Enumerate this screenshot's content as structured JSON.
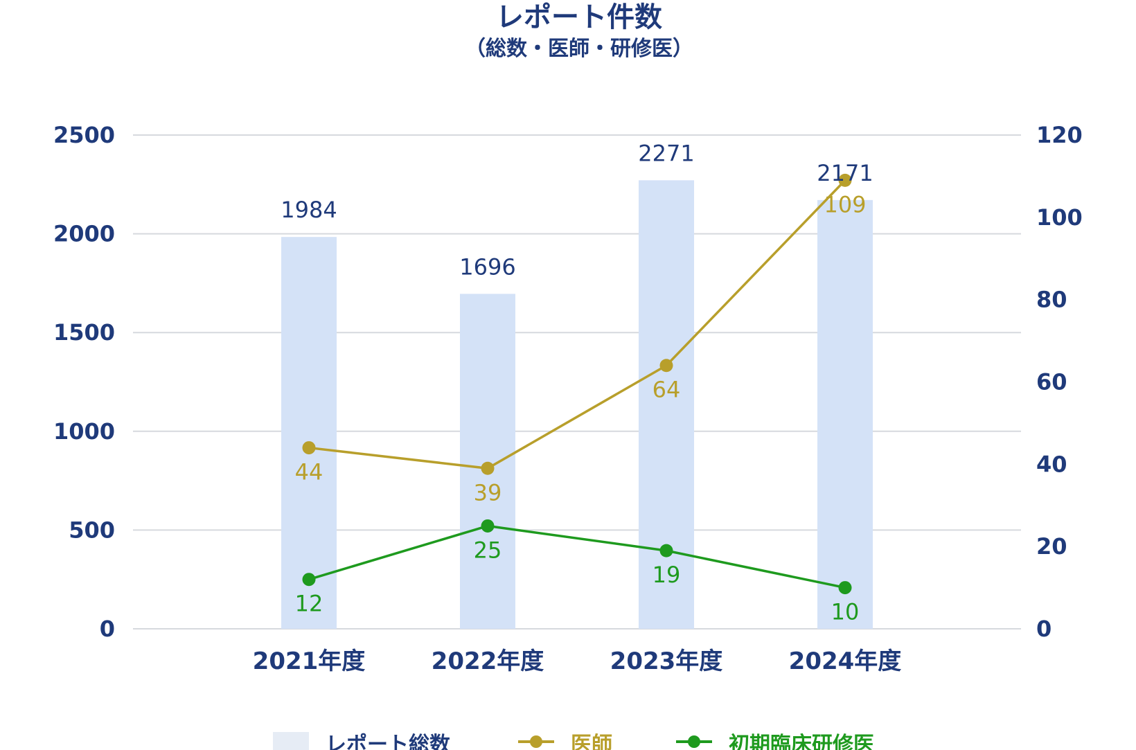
{
  "chart_data": {
    "type": "bar",
    "title": "レポート件数",
    "subtitle": "（総数・医師・研修医）",
    "categories": [
      "2021年度",
      "2022年度",
      "2023年度",
      "2024年度"
    ],
    "y_left": {
      "ticks": [
        0,
        500,
        1000,
        1500,
        2000,
        2500
      ],
      "range": [
        0,
        2500
      ]
    },
    "y_right": {
      "ticks": [
        0,
        20,
        40,
        60,
        80,
        100,
        120
      ],
      "range": [
        0,
        120
      ]
    },
    "grid": true,
    "legend_position": "bottom",
    "series": [
      {
        "name": "レポート総数",
        "type": "bar",
        "axis": "left",
        "color": "#d4e2f7",
        "values": [
          1984,
          1696,
          2271,
          2171
        ]
      },
      {
        "name": "医師",
        "type": "line",
        "axis": "right",
        "color": "#b89f2b",
        "values": [
          44,
          39,
          64,
          109
        ]
      },
      {
        "name": "初期臨床研修医",
        "type": "line",
        "axis": "right",
        "color": "#1e9a1e",
        "values": [
          12,
          25,
          19,
          10
        ]
      }
    ],
    "colors": {
      "text": "#1f3a7a",
      "grid": "#d6d9de",
      "legend_bar": "#e6ecf5"
    }
  }
}
